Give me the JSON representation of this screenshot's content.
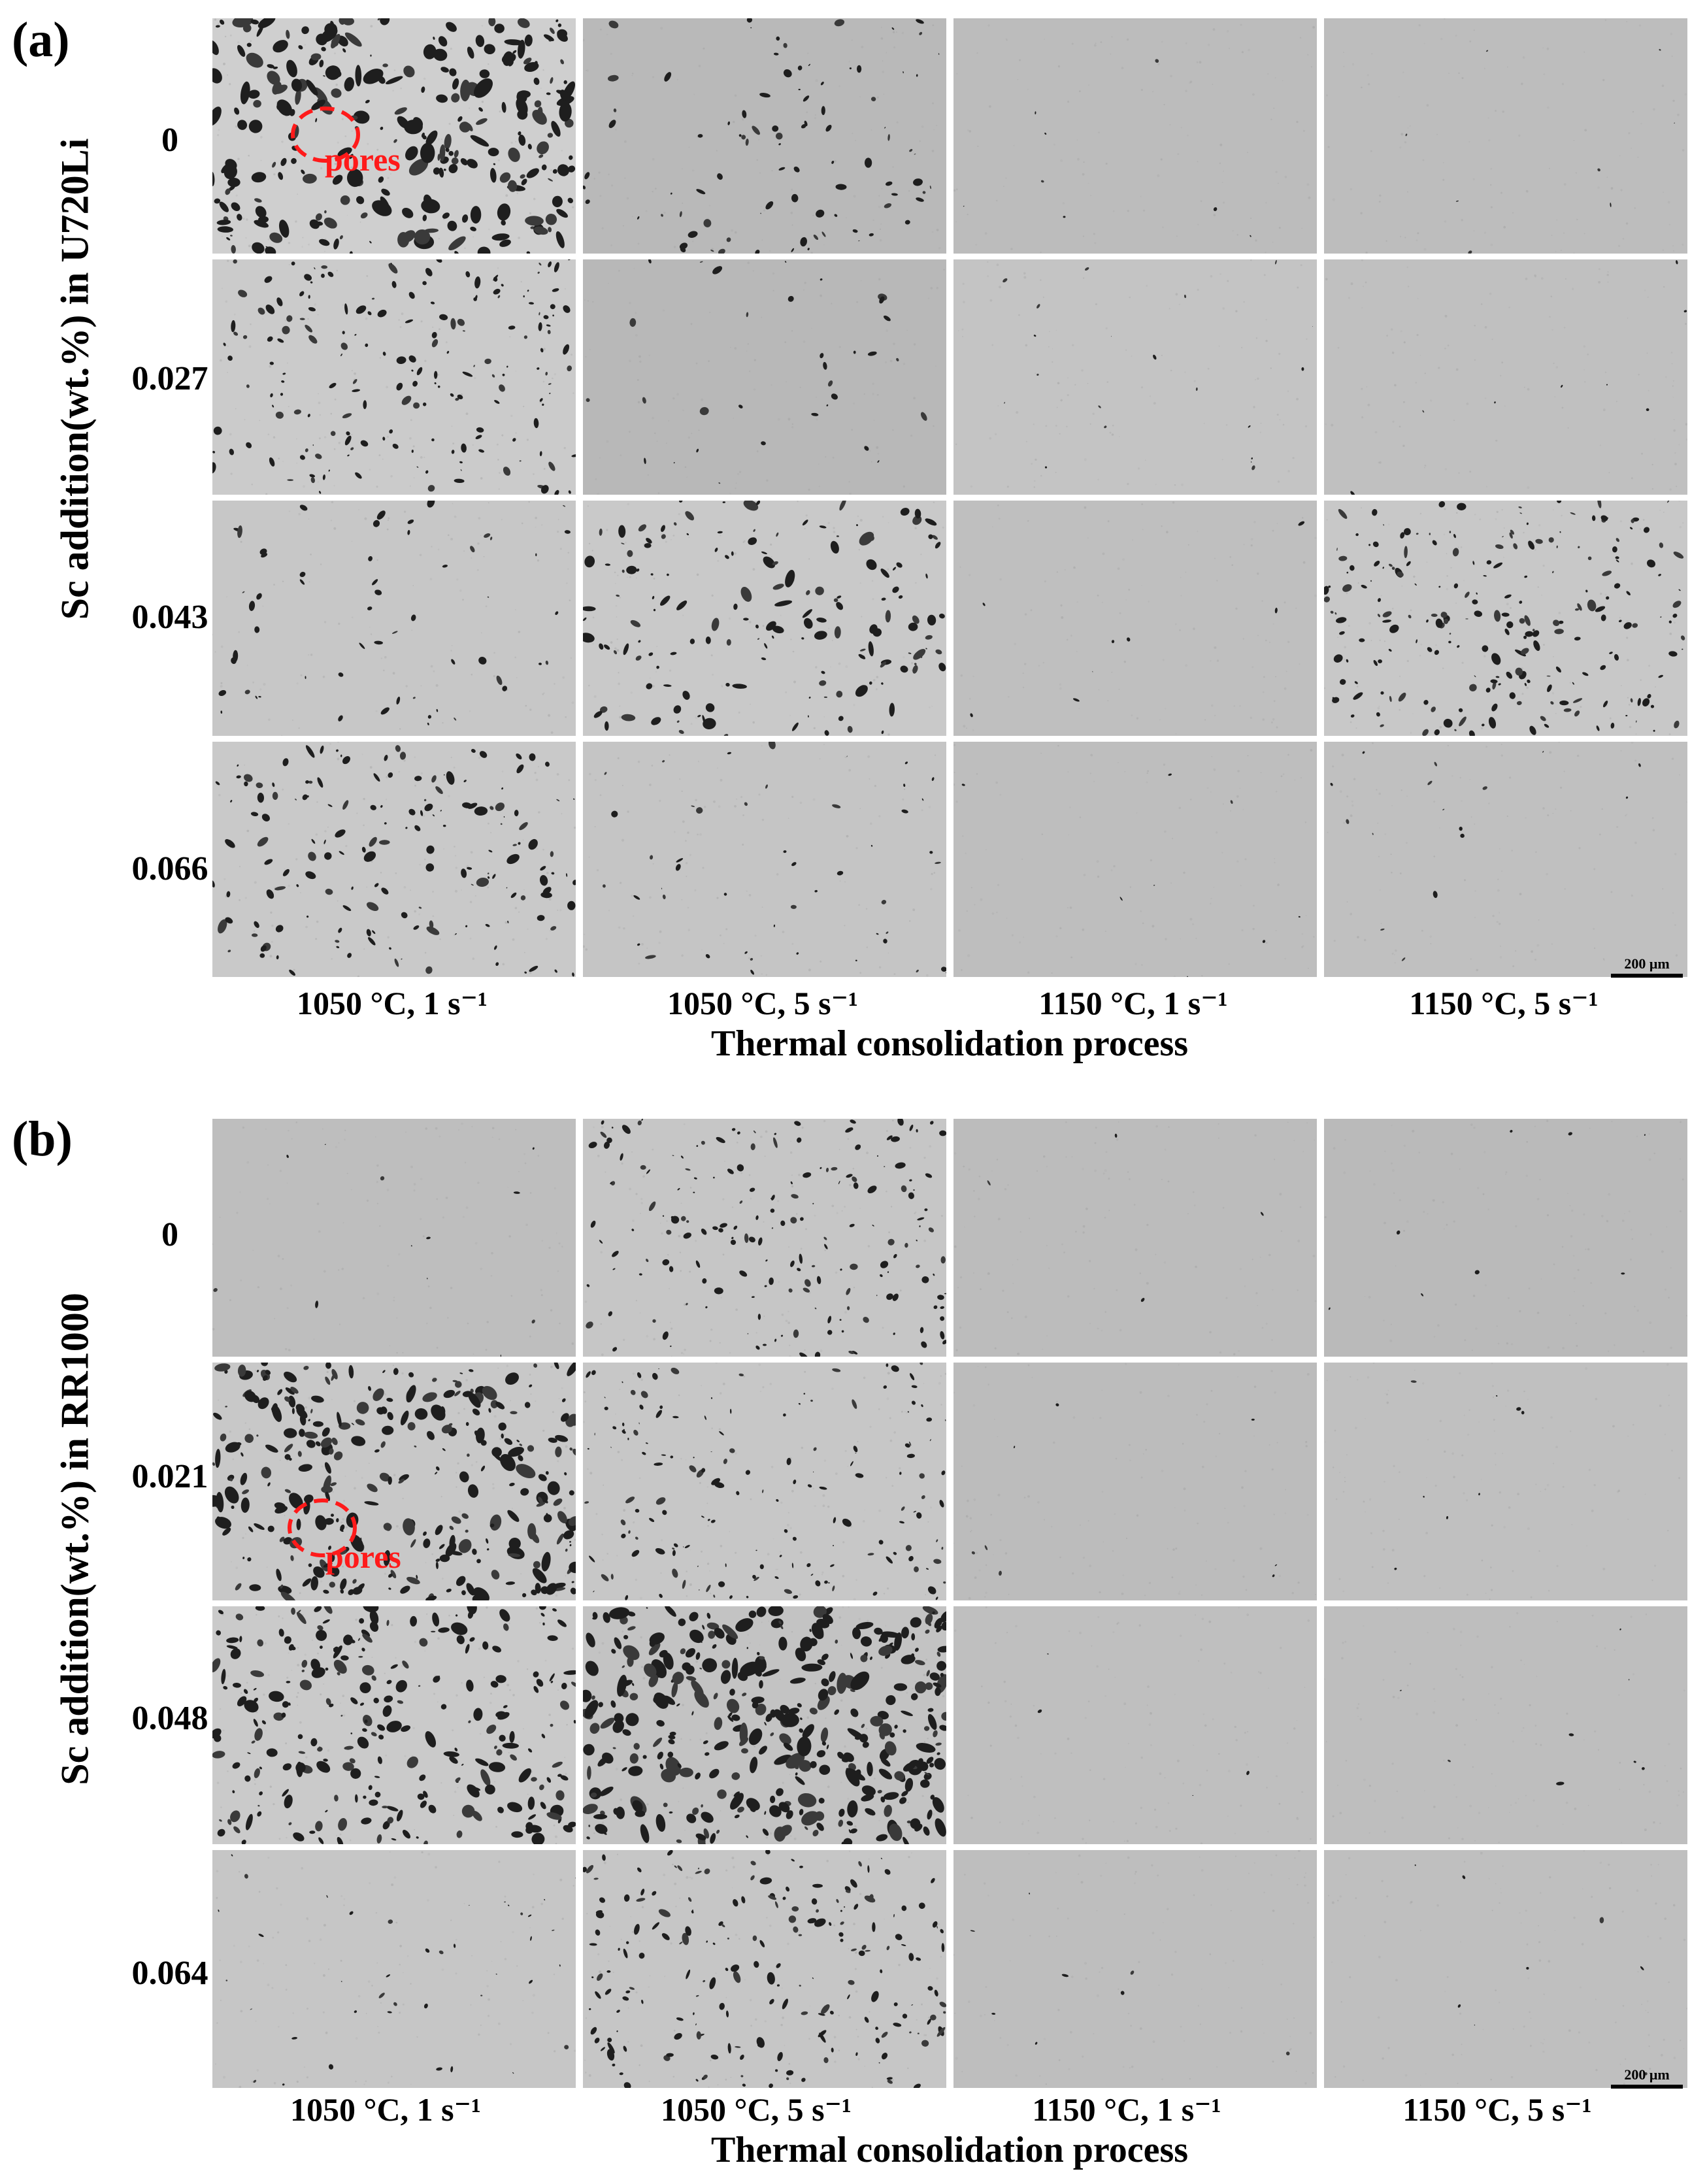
{
  "panels": [
    {
      "id": "a",
      "label": "(a)",
      "y_axis_label": "Sc addition(wt.%) in U720Li",
      "rows": [
        "0",
        "0.027",
        "0.043",
        "0.066"
      ],
      "columns": [
        "1050 °C, 1 s⁻¹",
        "1050 °C, 5 s⁻¹",
        "1150 °C, 1 s⁻¹",
        "1150 °C, 5 s⁻¹"
      ],
      "x_axis_label": "Thermal consolidation process",
      "annotation": "pores",
      "scale_bar": "200 μm"
    },
    {
      "id": "b",
      "label": "(b)",
      "y_axis_label": "Sc addition(wt.%) in RR1000",
      "rows": [
        "0",
        "0.021",
        "0.048",
        "0.064"
      ],
      "columns": [
        "1050 °C, 1 s⁻¹",
        "1050 °C, 5 s⁻¹",
        "1150 °C, 1 s⁻¹",
        "1150 °C, 5 s⁻¹"
      ],
      "x_axis_label": "Thermal consolidation process",
      "annotation": "pores",
      "scale_bar": "200 μm"
    }
  ],
  "colors": {
    "annotation": "#ff1a1a",
    "background": "#ffffff"
  }
}
